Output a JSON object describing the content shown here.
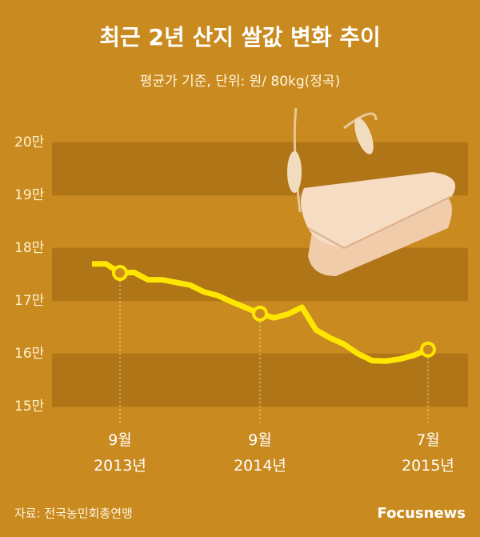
{
  "chart_data": {
    "type": "line",
    "title": "최근 2년 산지 쌀값 변화 추이",
    "subtitle": "평균가 기준, 단위: 원/ 80kg(정곡)",
    "categories": [
      null,
      null,
      "9월 2013년",
      null,
      null,
      null,
      null,
      null,
      null,
      null,
      null,
      null,
      "9월 2014년",
      null,
      null,
      null,
      null,
      null,
      null,
      null,
      null,
      null,
      null,
      null,
      "7월 2015년"
    ],
    "series": [
      {
        "color": "#ffe600",
        "values": [
          177000,
          177000,
          175300,
          175400,
          174000,
          174000,
          173500,
          173000,
          171700,
          171000,
          169800,
          168700,
          167600,
          166800,
          167500,
          168800,
          164500,
          163000,
          161800,
          160000,
          158700,
          158600,
          159000,
          159700,
          160800
        ]
      }
    ],
    "ylim": [
      150000,
      200000
    ],
    "yticks": [
      {
        "value": 150000,
        "label": "15만"
      },
      {
        "value": 160000,
        "label": "16만"
      },
      {
        "value": 170000,
        "label": "17만"
      },
      {
        "value": 180000,
        "label": "18만"
      },
      {
        "value": 190000,
        "label": "19만"
      },
      {
        "value": 200000,
        "label": "20만"
      }
    ],
    "source": "자료: 전국농민회총연맹",
    "logo": "Focusnews"
  }
}
